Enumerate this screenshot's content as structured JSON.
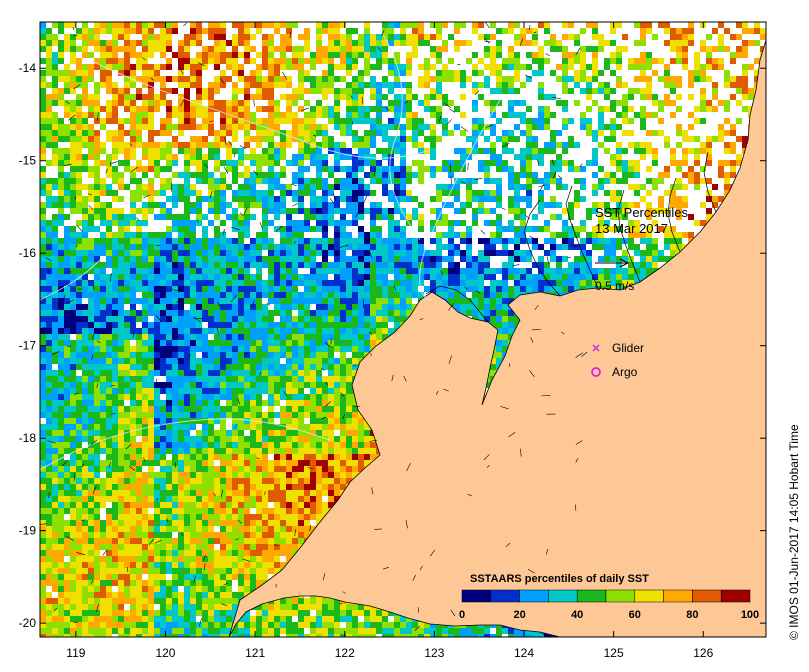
{
  "map": {
    "x_ticks": [
      "119",
      "120",
      "121",
      "122",
      "123",
      "124",
      "125",
      "126"
    ],
    "y_ticks": [
      "-14",
      "-15",
      "-16",
      "-17",
      "-18",
      "-19",
      "-20"
    ],
    "lon_range": [
      118.6,
      126.7
    ],
    "lat_range": [
      -20.15,
      -13.5
    ]
  },
  "annotation": {
    "title": "SST Percentiles",
    "date": "13 Mar 2017",
    "vector_label": "0.5 m/s",
    "glider_label": "Glider",
    "argo_label": "Argo"
  },
  "legend": {
    "title": "SSTAARS percentiles of daily SST",
    "ticks": [
      "0",
      "20",
      "40",
      "60",
      "80",
      "100"
    ],
    "colors": [
      "#00007f",
      "#0030cc",
      "#00a0ff",
      "#00c8c8",
      "#1ab81a",
      "#8ee000",
      "#f0e000",
      "#ffa800",
      "#e05a00",
      "#a00000"
    ]
  },
  "credit": "© IMOS 01-Jun-2017 14:05 Hobart Time",
  "colors": {
    "land": "#fdc896",
    "nodata": "#ffffff",
    "glider": "#e020e0",
    "argo": "#e020e0"
  }
}
